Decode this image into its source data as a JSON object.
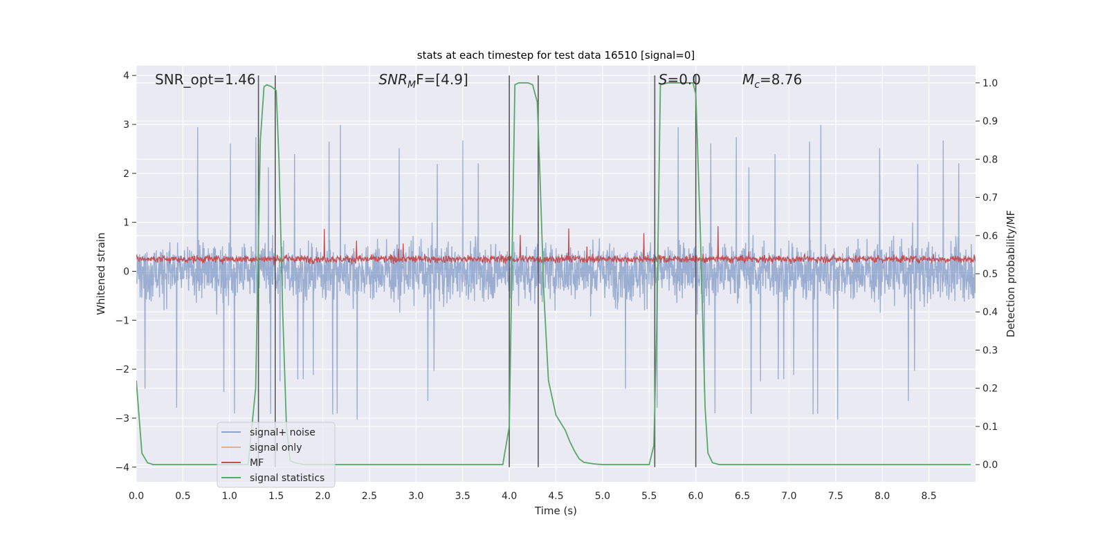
{
  "chart_data": {
    "type": "line",
    "title": "stats at each timestep for test data 16510 [signal=0]",
    "xlabel": "Time (s)",
    "ylabel": "Whitened strain",
    "ylabel_right": "Detection probability/MF",
    "xlim": [
      0.0,
      9.0
    ],
    "ylim": [
      -4.3,
      4.2
    ],
    "ylim_right": [
      -0.045,
      1.045
    ],
    "x_ticks": [
      "0.0",
      "0.5",
      "1.0",
      "1.5",
      "2.0",
      "2.5",
      "3.0",
      "3.5",
      "4.0",
      "4.5",
      "5.0",
      "5.5",
      "6.0",
      "6.5",
      "7.0",
      "7.5",
      "8.0",
      "8.5"
    ],
    "y_ticks": [
      "4",
      "3",
      "2",
      "1",
      "0",
      "−1",
      "−2",
      "−3",
      "−4"
    ],
    "y_right_ticks": [
      "1.0",
      "0.9",
      "0.8",
      "0.7",
      "0.6",
      "0.5",
      "0.4",
      "0.3",
      "0.2",
      "0.1",
      "0.0"
    ],
    "annotations": [
      {
        "text": "SNR_opt=1.46",
        "x": 0.2
      },
      {
        "base": "SNR",
        "sub": "M",
        "rest": "F=[4.9]",
        "x": 2.6
      },
      {
        "base": "S",
        "sub": "",
        "rest": "=0.0",
        "x": 5.6
      },
      {
        "base": "M",
        "sub": "c",
        "rest": "=8.76",
        "x": 6.5
      }
    ],
    "legend": {
      "placement": "lower-left",
      "entries": [
        {
          "label": "signal+ noise",
          "color": "#4c72b0"
        },
        {
          "label": "signal only",
          "color": "#dd8452"
        },
        {
          "label": "MF",
          "color": "#c44e52"
        },
        {
          "label": "signal statistics",
          "color": "#55a868"
        }
      ]
    },
    "noise_envelope": {
      "color": "#4c72b0",
      "alpha": 0.5,
      "typical_high": 2.0,
      "typical_low": -2.0,
      "spike_max": 3.1,
      "spike_min": -4.0
    },
    "mf_series": {
      "color": "#c44e52",
      "base": 0.25,
      "amplitude": 0.3,
      "max": 1.0
    },
    "detection_probability": {
      "color": "#55a868",
      "x": [
        0.0,
        0.06,
        0.12,
        0.18,
        0.25,
        0.5,
        0.8,
        1.0,
        1.2,
        1.28,
        1.33,
        1.37,
        1.4,
        1.45,
        1.5,
        1.53,
        1.57,
        1.61,
        1.65,
        1.7,
        1.8,
        2.0,
        2.5,
        3.0,
        3.5,
        3.93,
        4.0,
        4.03,
        4.06,
        4.1,
        4.2,
        4.25,
        4.3,
        4.33,
        4.37,
        4.42,
        4.5,
        4.6,
        4.65,
        4.7,
        4.75,
        4.8,
        4.9,
        5.0,
        5.3,
        5.5,
        5.55,
        5.58,
        5.62,
        5.7,
        5.8,
        5.9,
        5.97,
        6.0,
        6.05,
        6.1,
        6.13,
        6.18,
        6.25,
        6.5,
        7.0,
        8.0,
        8.95
      ],
      "y": [
        0.22,
        0.03,
        0.005,
        0.0,
        0.0,
        0.0,
        0.0,
        0.0,
        0.0,
        0.2,
        0.85,
        0.99,
        0.995,
        0.99,
        0.98,
        0.8,
        0.4,
        0.1,
        0.01,
        0.005,
        0.0,
        0.0,
        0.0,
        0.0,
        0.0,
        0.0,
        0.1,
        0.55,
        0.995,
        1.0,
        1.0,
        0.995,
        0.95,
        0.75,
        0.45,
        0.22,
        0.13,
        0.09,
        0.06,
        0.035,
        0.015,
        0.006,
        0.002,
        0.0,
        0.0,
        0.0,
        0.05,
        0.35,
        0.995,
        1.0,
        1.0,
        1.0,
        1.0,
        0.97,
        0.6,
        0.15,
        0.03,
        0.005,
        0.0,
        0.0,
        0.0,
        0.0,
        0.0
      ]
    },
    "markers": {
      "color": "#555555",
      "x": [
        1.31,
        1.49,
        4.0,
        4.31,
        5.56,
        6.0
      ],
      "y_top": 4.0,
      "y_bottom": -4.0
    }
  }
}
